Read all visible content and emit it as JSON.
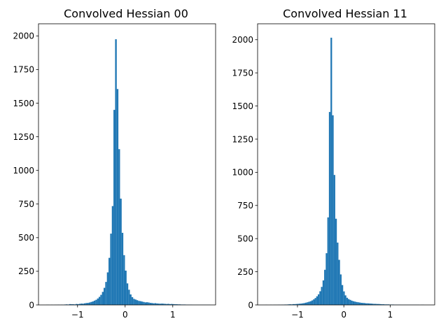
{
  "chart_data": [
    {
      "type": "bar",
      "title": "Convolved Hessian 00",
      "xlabel": "",
      "ylabel": "",
      "xlim": [
        -1.82,
        1.9
      ],
      "ylim": [
        0,
        2090
      ],
      "xticks": [
        -1,
        0,
        1
      ],
      "xtick_labels": [
        "−1",
        "0",
        "1"
      ],
      "yticks": [
        0,
        250,
        500,
        750,
        1000,
        1250,
        1500,
        1750,
        2000
      ],
      "ytick_labels": [
        "0",
        "250",
        "500",
        "750",
        "1000",
        "1250",
        "1500",
        "1750",
        "2000"
      ],
      "grid": false,
      "legend": "none",
      "color": "#1f77b4",
      "bin_start": -1.66,
      "bin_width": 0.0345,
      "counts": [
        1,
        1,
        0,
        1,
        0,
        1,
        1,
        2,
        1,
        2,
        1,
        3,
        4,
        3,
        6,
        5,
        5,
        4,
        7,
        6,
        8,
        10,
        9,
        12,
        14,
        15,
        18,
        22,
        26,
        32,
        38,
        48,
        60,
        75,
        97,
        127,
        171,
        242,
        350,
        530,
        735,
        1450,
        1975,
        1605,
        1158,
        790,
        536,
        370,
        255,
        160,
        113,
        78,
        58,
        45,
        40,
        35,
        30,
        28,
        25,
        22,
        19,
        20,
        18,
        15,
        14,
        12,
        13,
        11,
        10,
        9,
        10,
        9,
        8,
        7,
        8,
        6,
        7,
        6,
        5,
        5,
        4,
        4,
        3,
        3,
        3,
        2,
        2,
        2,
        2,
        1,
        1,
        1,
        1,
        1,
        1,
        1,
        1,
        1,
        1,
        1
      ]
    },
    {
      "type": "bar",
      "title": "Convolved Hessian 11",
      "xlabel": "",
      "ylabel": "",
      "xlim": [
        -1.86,
        1.96
      ],
      "ylim": [
        0,
        2120
      ],
      "xticks": [
        -1,
        0,
        1
      ],
      "xtick_labels": [
        "−1",
        "0",
        "1"
      ],
      "yticks": [
        0,
        250,
        500,
        750,
        1000,
        1250,
        1500,
        1750,
        2000
      ],
      "ytick_labels": [
        "0",
        "250",
        "500",
        "750",
        "1000",
        "1250",
        "1500",
        "1750",
        "2000"
      ],
      "grid": false,
      "legend": "none",
      "color": "#1f77b4",
      "bin_start": -1.69,
      "bin_width": 0.0342,
      "counts": [
        1,
        0,
        0,
        1,
        0,
        1,
        1,
        1,
        2,
        1,
        2,
        2,
        3,
        3,
        4,
        5,
        4,
        6,
        6,
        7,
        8,
        9,
        10,
        12,
        14,
        17,
        20,
        24,
        28,
        34,
        42,
        52,
        65,
        80,
        103,
        136,
        185,
        265,
        390,
        660,
        1455,
        2015,
        1430,
        980,
        650,
        470,
        340,
        230,
        150,
        102,
        72,
        54,
        44,
        38,
        32,
        28,
        25,
        22,
        20,
        18,
        16,
        15,
        14,
        12,
        12,
        11,
        10,
        9,
        8,
        8,
        7,
        7,
        6,
        5,
        5,
        4,
        4,
        4,
        3,
        3,
        3,
        2,
        2,
        2,
        2,
        1,
        1,
        1,
        1,
        1,
        1,
        1,
        1,
        1,
        1,
        1,
        1,
        0,
        1,
        1
      ]
    }
  ]
}
